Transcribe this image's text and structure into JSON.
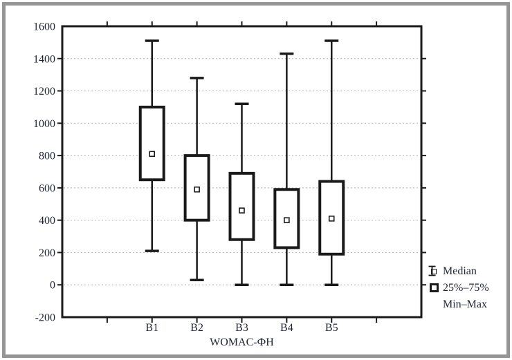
{
  "figure": {
    "background": "#ffffff",
    "border_color": "#959595",
    "axis_color": "#1a1a1a",
    "grid_color": "#bcbcbc",
    "text_color": "#1e2430"
  },
  "chart_data": {
    "type": "box",
    "title": "",
    "xlabel": "WOMAC-ФН",
    "ylabel": "",
    "categories": [
      "B1",
      "B2",
      "B3",
      "B4",
      "B5"
    ],
    "series": [
      {
        "category": "B1",
        "min": 210,
        "q1": 650,
        "median": 810,
        "q3": 1100,
        "max": 1510
      },
      {
        "category": "B2",
        "min": 30,
        "q1": 400,
        "median": 590,
        "q3": 800,
        "max": 1280
      },
      {
        "category": "B3",
        "min": 0,
        "q1": 280,
        "median": 460,
        "q3": 690,
        "max": 1120
      },
      {
        "category": "B4",
        "min": 0,
        "q1": 230,
        "median": 400,
        "q3": 590,
        "max": 1430
      },
      {
        "category": "B5",
        "min": 0,
        "q1": 190,
        "median": 410,
        "q3": 640,
        "max": 1510
      }
    ],
    "ylim": [
      -200,
      1600
    ],
    "ytick_step": 200,
    "yticks": [
      1600,
      1400,
      1200,
      1000,
      800,
      600,
      400,
      200,
      0,
      -200
    ],
    "grid": "horizontal-dashed",
    "legend_position": "bottom-right",
    "legend": [
      {
        "icon": "small-open-square",
        "label": "Median"
      },
      {
        "icon": "thick-open-square",
        "label": "25%–75%"
      },
      {
        "icon": "i-beam-whisker",
        "label": "Min–Max"
      }
    ]
  }
}
